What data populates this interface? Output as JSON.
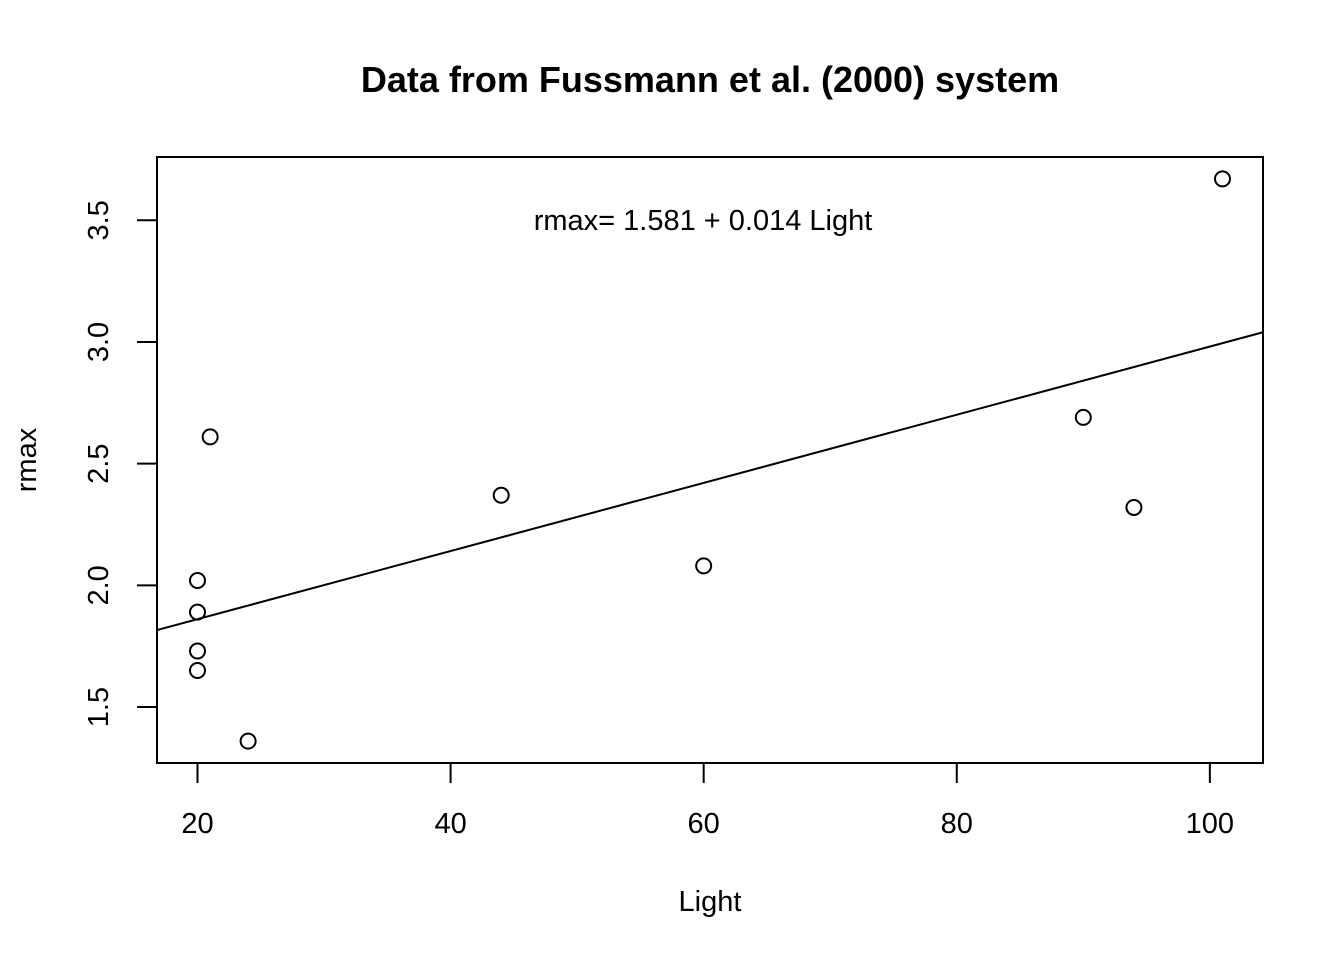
{
  "chart_data": {
    "type": "scatter",
    "title": "Data from Fussmann et al. (2000) system",
    "xlabel": "Light",
    "ylabel": "rmax",
    "xlim": [
      16.8,
      104.2
    ],
    "ylim": [
      1.27,
      3.76
    ],
    "x_ticks": [
      "20",
      "40",
      "60",
      "80",
      "100"
    ],
    "y_ticks": [
      "1.5",
      "2.0",
      "2.5",
      "3.0",
      "3.5"
    ],
    "grid": false,
    "legend": "none",
    "points": [
      {
        "x": 20,
        "y": 2.02
      },
      {
        "x": 20,
        "y": 1.89
      },
      {
        "x": 20,
        "y": 1.73
      },
      {
        "x": 20,
        "y": 1.65
      },
      {
        "x": 21,
        "y": 2.61
      },
      {
        "x": 24,
        "y": 1.36
      },
      {
        "x": 44,
        "y": 2.37
      },
      {
        "x": 60,
        "y": 2.08
      },
      {
        "x": 90,
        "y": 2.69
      },
      {
        "x": 94,
        "y": 2.32
      },
      {
        "x": 101,
        "y": 3.67
      }
    ],
    "regression": {
      "intercept": 1.581,
      "slope": 0.014
    },
    "annotation": "rmax= 1.581 + 0.014 Light"
  }
}
